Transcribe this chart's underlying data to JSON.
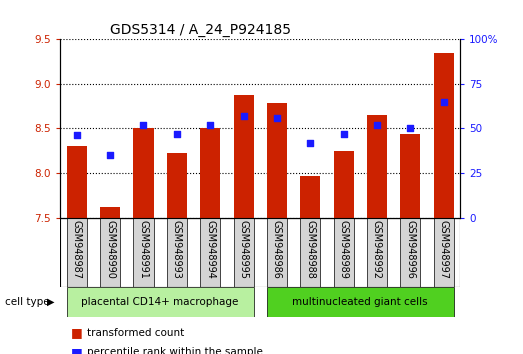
{
  "title": "GDS5314 / A_24_P924185",
  "samples": [
    "GSM948987",
    "GSM948990",
    "GSM948991",
    "GSM948993",
    "GSM948994",
    "GSM948995",
    "GSM948986",
    "GSM948988",
    "GSM948989",
    "GSM948992",
    "GSM948996",
    "GSM948997"
  ],
  "transformed_count": [
    8.3,
    7.62,
    8.5,
    8.22,
    8.5,
    8.87,
    8.78,
    7.97,
    8.25,
    8.65,
    8.44,
    9.34
  ],
  "percentile_rank": [
    46,
    35,
    52,
    47,
    52,
    57,
    56,
    42,
    47,
    52,
    50,
    65
  ],
  "ylim_left": [
    7.5,
    9.5
  ],
  "ylim_right": [
    0,
    100
  ],
  "yticks_left": [
    7.5,
    8.0,
    8.5,
    9.0,
    9.5
  ],
  "yticks_right": [
    0,
    25,
    50,
    75,
    100
  ],
  "group1_label": "placental CD14+ macrophage",
  "group2_label": "multinucleated giant cells",
  "group1_indices": [
    0,
    1,
    2,
    3,
    4,
    5
  ],
  "group2_indices": [
    6,
    7,
    8,
    9,
    10,
    11
  ],
  "bar_color": "#cc2200",
  "dot_color": "#1a1aff",
  "bar_bottom": 7.5,
  "grid_color": "#000000",
  "bg_plot": "#ffffff",
  "sample_bg": "#d4d4d4",
  "group1_bg": "#b8f0a0",
  "group2_bg": "#50d020",
  "legend_bar_label": "transformed count",
  "legend_dot_label": "percentile rank within the sample",
  "cell_type_label": "cell type",
  "title_fontsize": 10,
  "axis_fontsize": 7.5,
  "tick_fontsize": 7,
  "label_fontsize": 7.5
}
